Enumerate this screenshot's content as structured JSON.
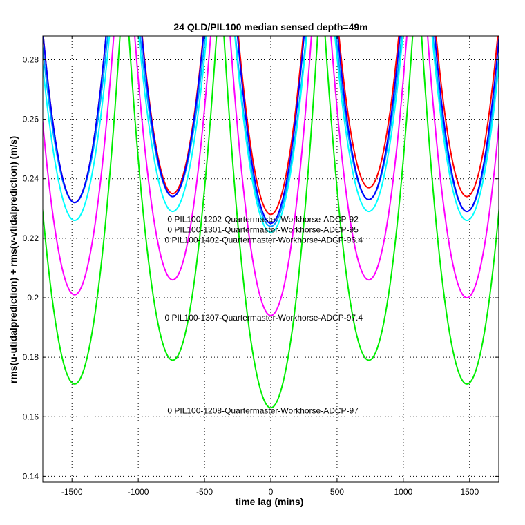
{
  "chart_data": {
    "type": "line",
    "title": "24 QLD/PIL100 median sensed depth=49m",
    "xlabel": "time lag (mins)",
    "ylabel": "rms(u-utidalprediction) + rms(v-vtidalprediction) (m/s)",
    "xlim": [
      -1720,
      1720
    ],
    "ylim": [
      0.138,
      0.288
    ],
    "xticks": [
      -1500,
      -1000,
      -500,
      0,
      500,
      1000,
      1500
    ],
    "xtick_labels": [
      "-1500",
      "-1000",
      "-500",
      "0",
      "500",
      "1000",
      "1500"
    ],
    "yticks": [
      0.14,
      0.16,
      0.18,
      0.2,
      0.22,
      0.24,
      0.26,
      0.28
    ],
    "ytick_labels": [
      "0.14",
      "0.16",
      "0.18",
      "0.2",
      "0.22",
      "0.24",
      "0.26",
      "0.28"
    ],
    "grid": true,
    "dip_centers": [
      -1480,
      -740,
      0,
      740,
      1480
    ],
    "series": [
      {
        "color": "#ff0000",
        "minima": [
          0.232,
          0.235,
          0.228,
          0.237,
          0.234
        ],
        "curvature": 1e-05
      },
      {
        "color": "#00a0ff",
        "minima": [
          0.232,
          0.234,
          0.224,
          0.233,
          0.229
        ],
        "curvature": 9e-06
      },
      {
        "color": "#0000ff",
        "minima": [
          0.232,
          0.234,
          0.225,
          0.233,
          0.229
        ],
        "curvature": 1e-05
      },
      {
        "color": "#00ffff",
        "minima": [
          0.226,
          0.229,
          0.222,
          0.229,
          0.226
        ],
        "curvature": 9e-06
      },
      {
        "color": "#ff00ff",
        "minima": [
          0.201,
          0.206,
          0.194,
          0.206,
          0.2
        ],
        "curvature": 1e-05
      },
      {
        "color": "#00ee00",
        "minima": [
          0.171,
          0.179,
          0.163,
          0.179,
          0.171
        ],
        "curvature": 1e-05
      }
    ],
    "annotations": [
      {
        "text": "0 PIL100-1202-Quartermaster-Workhorse-ADCP-92",
        "x": -780,
        "y": 0.2254
      },
      {
        "text": "0 PIL100-1301-Quartermaster-Workhorse-ADCP-95",
        "x": -780,
        "y": 0.2219
      },
      {
        "text": "0 PIL100-1402-Quartermaster-Workhorse-ADCP-96.4",
        "x": -800,
        "y": 0.2184
      },
      {
        "text": "0 PIL100-1307-Quartermaster-Workhorse-ADCP-97.4",
        "x": -800,
        "y": 0.1923
      },
      {
        "text": "0 PIL100-1208-Quartermaster-Workhorse-ADCP-97",
        "x": -780,
        "y": 0.1611
      }
    ]
  }
}
